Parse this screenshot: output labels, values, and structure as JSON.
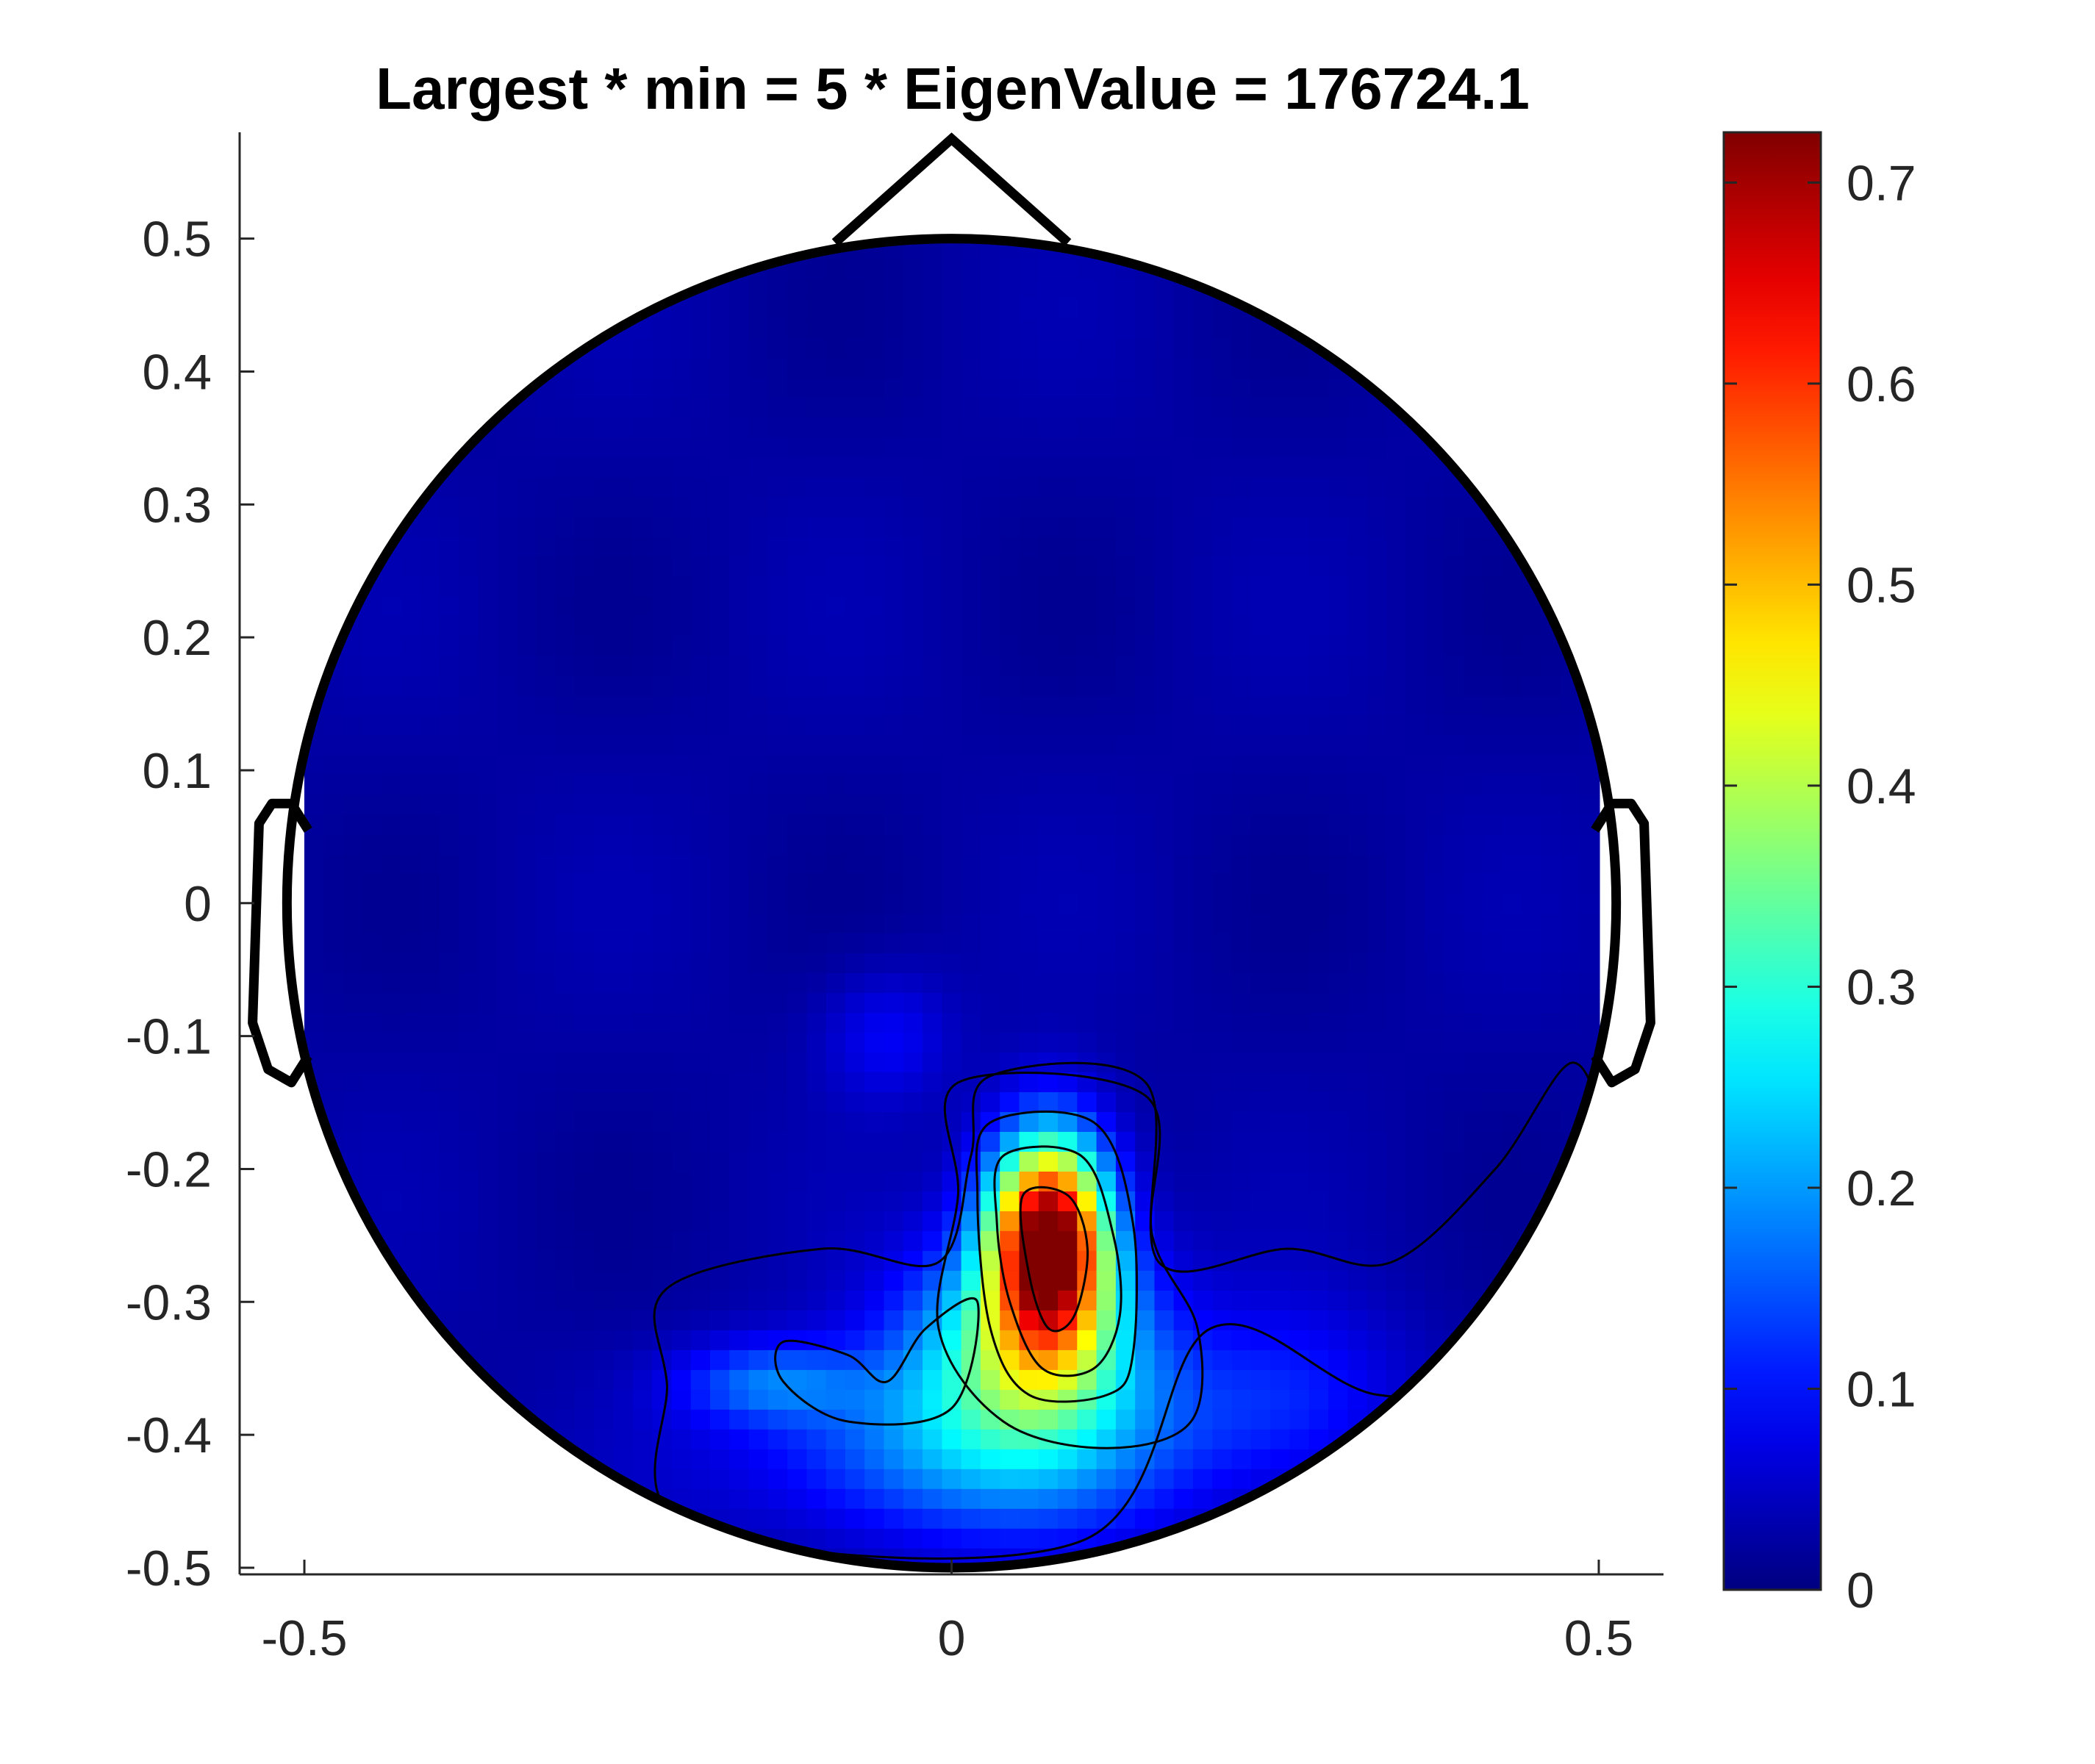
{
  "chart_data": {
    "type": "heatmap",
    "title": "Largest * min = 5 * EigenValue = 176724.1",
    "xlabel": "",
    "ylabel": "",
    "xlim": [
      -0.55,
      0.55
    ],
    "ylim": [
      -0.505,
      0.58
    ],
    "xticks": [
      -0.5,
      0,
      0.5
    ],
    "xtick_labels": [
      "-0.5",
      "0",
      "0.5"
    ],
    "yticks": [
      -0.5,
      -0.4,
      -0.3,
      -0.2,
      -0.1,
      0,
      0.1,
      0.2,
      0.3,
      0.4,
      0.5
    ],
    "ytick_labels": [
      "-0.5",
      "-0.4",
      "-0.3",
      "-0.2",
      "-0.1",
      "0",
      "0.1",
      "0.2",
      "0.3",
      "0.4",
      "0.5"
    ],
    "colorbar": {
      "colormap": "jet",
      "limits": [
        0,
        0.725
      ],
      "ticks": [
        0,
        0.1,
        0.2,
        0.3,
        0.4,
        0.5,
        0.6,
        0.7
      ],
      "tick_labels": [
        "0",
        "0.1",
        "0.2",
        "0.3",
        "0.4",
        "0.5",
        "0.6",
        "0.7"
      ]
    },
    "head": {
      "center": [
        0,
        0
      ],
      "radius": 0.5
    },
    "peak": {
      "x": 0.075,
      "y": -0.25,
      "value": 0.72
    },
    "grid": false,
    "contour_levels": [
      0.1,
      0.2,
      0.3,
      0.4,
      0.5,
      0.6
    ]
  },
  "colors": {
    "outline": "#000000",
    "axis": "#262626",
    "background": "#ffffff"
  }
}
